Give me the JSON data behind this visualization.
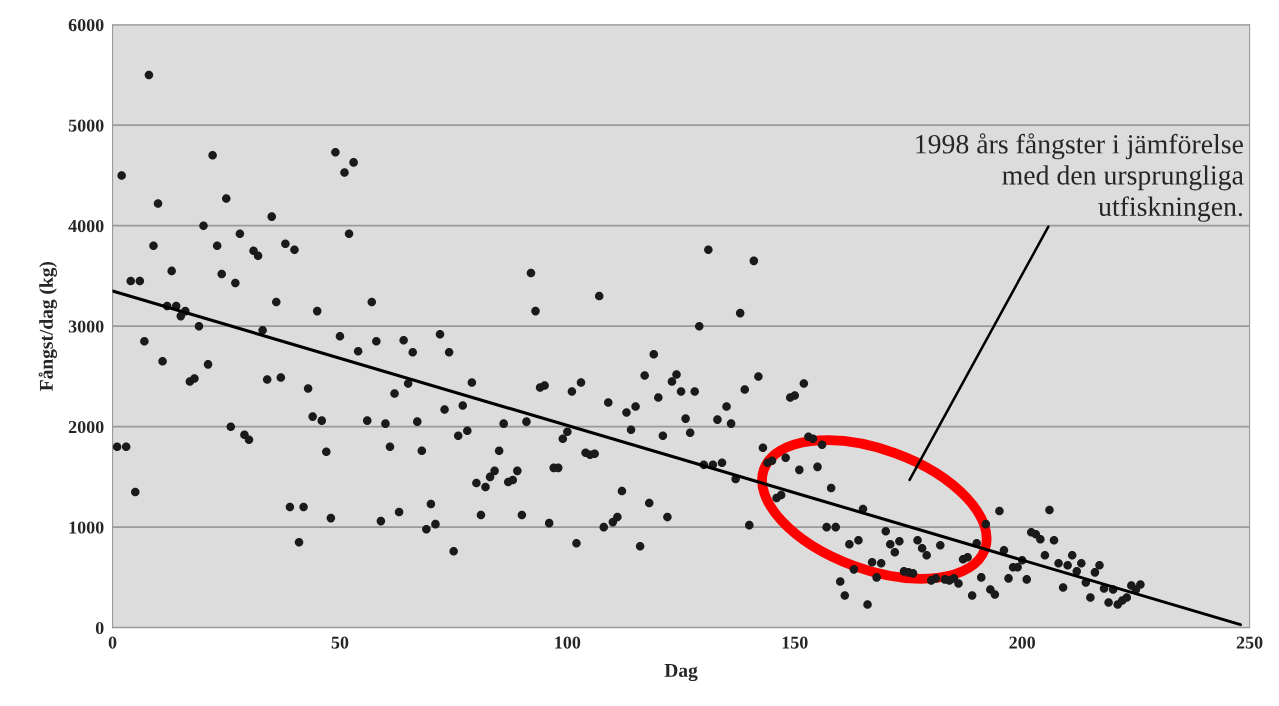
{
  "chart_data": {
    "type": "scatter",
    "xlabel": "Dag",
    "ylabel": "Fångst/dag (kg)",
    "xlim": [
      0,
      250
    ],
    "ylim": [
      0,
      6000
    ],
    "xticks": [
      0,
      50,
      100,
      150,
      200,
      250
    ],
    "yticks": [
      0,
      1000,
      2000,
      3000,
      4000,
      5000,
      6000
    ],
    "grid": "y",
    "marker": "circle",
    "legend": false,
    "series": [
      {
        "color": "#1a1a1a",
        "x": [
          1,
          3,
          2,
          5,
          4,
          6,
          7,
          8,
          9,
          10,
          11,
          12,
          13,
          14,
          15,
          16,
          17,
          18,
          19,
          20,
          21,
          22,
          23,
          24,
          25,
          26,
          27,
          28,
          29,
          30,
          31,
          32,
          33,
          34,
          35,
          36,
          37,
          38,
          39,
          40,
          41,
          42,
          43,
          44,
          45,
          46,
          47,
          48,
          49,
          50,
          51,
          52,
          53,
          54,
          56,
          57,
          58,
          59,
          60,
          61,
          62,
          63,
          64,
          65,
          66,
          67,
          68,
          69,
          70,
          71,
          72,
          73,
          74,
          75,
          76,
          77,
          78,
          79,
          80,
          81,
          82,
          83,
          84,
          85,
          86,
          87,
          88,
          89,
          90,
          91,
          92,
          93,
          94,
          95,
          96,
          97,
          98,
          99,
          100,
          101,
          102,
          103,
          104,
          105,
          106,
          107,
          108,
          109,
          110,
          111,
          112,
          113,
          114,
          115,
          116,
          117,
          118,
          119,
          120,
          121,
          122,
          123,
          124,
          125,
          126,
          127,
          128,
          129,
          130,
          131,
          132,
          133,
          134,
          135,
          136,
          137,
          138,
          139,
          140,
          141,
          142,
          143,
          144,
          145,
          146,
          147,
          148,
          149,
          150,
          151,
          152,
          153,
          154,
          155,
          156,
          157,
          158,
          159,
          160,
          161,
          162,
          163,
          164,
          165,
          166,
          167,
          168,
          169,
          170,
          171,
          172,
          173,
          174,
          175,
          176,
          177,
          178,
          179,
          180,
          181,
          182,
          183,
          184,
          185,
          186,
          187,
          188,
          189,
          190,
          191,
          192,
          193,
          194,
          195,
          196,
          197,
          198,
          199,
          200,
          201,
          202,
          203,
          204,
          205,
          206,
          207,
          208,
          209,
          210,
          211,
          212,
          213,
          214,
          215,
          216,
          217,
          218,
          219,
          220,
          221,
          222,
          223,
          224,
          225,
          226
        ],
        "values": [
          1800,
          1800,
          4500,
          1350,
          3450,
          3450,
          2850,
          5500,
          3800,
          4220,
          2650,
          3200,
          3550,
          3200,
          3100,
          3150,
          2450,
          2480,
          3000,
          4000,
          2620,
          4700,
          3800,
          3520,
          4270,
          2000,
          3430,
          3920,
          1920,
          1870,
          3750,
          3700,
          2960,
          2470,
          4090,
          3240,
          2490,
          3820,
          1200,
          3760,
          850,
          1200,
          2380,
          2100,
          3150,
          2060,
          1750,
          1090,
          4730,
          2900,
          4530,
          3920,
          4630,
          2750,
          2060,
          3240,
          2850,
          1060,
          2030,
          1800,
          2330,
          1150,
          2860,
          2430,
          2740,
          2050,
          1760,
          980,
          1230,
          1030,
          2920,
          2170,
          2740,
          760,
          1910,
          2210,
          1960,
          2440,
          1440,
          1120,
          1400,
          1500,
          1560,
          1760,
          2030,
          1450,
          1470,
          1560,
          1120,
          2050,
          3530,
          3150,
          2390,
          2410,
          1040,
          1590,
          1590,
          1880,
          1950,
          2350,
          840,
          2440,
          1740,
          1720,
          1730,
          3300,
          1000,
          2240,
          1050,
          1100,
          1360,
          2140,
          1970,
          2200,
          810,
          2510,
          1240,
          2720,
          2290,
          1910,
          1100,
          2450,
          2520,
          2350,
          2080,
          1940,
          2350,
          3000,
          1620,
          3760,
          1620,
          2070,
          1640,
          2200,
          2030,
          1480,
          3130,
          2370,
          1020,
          3650,
          2500,
          1790,
          1640,
          1660,
          1290,
          1320,
          1690,
          2290,
          2310,
          1570,
          2430,
          1900,
          1880,
          1600,
          1820,
          1000,
          1390,
          1000,
          460,
          320,
          830,
          580,
          870,
          1180,
          230,
          650,
          500,
          640,
          960,
          830,
          750,
          860,
          560,
          550,
          540,
          870,
          790,
          720,
          470,
          490,
          820,
          480,
          470,
          490,
          440,
          680,
          700,
          320,
          840,
          500,
          1030,
          380,
          330,
          1160,
          770,
          490,
          600,
          600,
          670,
          480,
          950,
          930,
          880,
          720,
          1170,
          870,
          640,
          400,
          620,
          720,
          560,
          640,
          450,
          300,
          550,
          620,
          390,
          250,
          380,
          230,
          270,
          300,
          420,
          380,
          430
        ]
      },
      {
        "type": "line",
        "color": "#000000",
        "marker": "none",
        "x": [
          0,
          248
        ],
        "values": [
          3350,
          30
        ]
      }
    ],
    "annotations": [
      "1998 års fångster i jämförelse\nmed den ursprungliga\nutfiskningen."
    ]
  }
}
